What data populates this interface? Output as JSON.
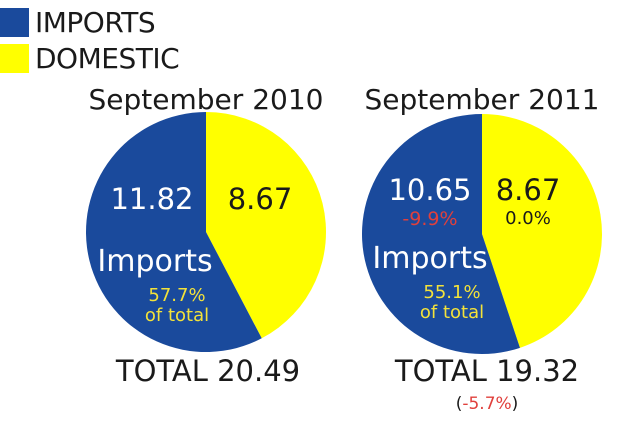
{
  "legend": {
    "items": [
      {
        "label": "IMPORTS",
        "color": "#1a4a9c"
      },
      {
        "label": "DOMESTIC",
        "color": "#ffff00"
      }
    ]
  },
  "chart_data": [
    {
      "type": "pie",
      "title": "September 2010",
      "slices": [
        {
          "name": "IMPORTS",
          "value": 11.82,
          "color": "#1a4a9c"
        },
        {
          "name": "DOMESTIC",
          "value": 8.67,
          "color": "#ffff00"
        }
      ],
      "labels": {
        "imports_value": "11.82",
        "domestic_value": "8.67",
        "imports_word": "Imports",
        "share": "57.7%",
        "share_suffix": "of total",
        "total": "TOTAL 20.49"
      }
    },
    {
      "type": "pie",
      "title": "September 2011",
      "slices": [
        {
          "name": "IMPORTS",
          "value": 10.65,
          "color": "#1a4a9c"
        },
        {
          "name": "DOMESTIC",
          "value": 8.67,
          "color": "#ffff00"
        }
      ],
      "labels": {
        "imports_value": "10.65",
        "imports_change": "-9.9%",
        "domestic_value": "8.67",
        "domestic_change": "0.0%",
        "imports_word": "Imports",
        "share": "55.1%",
        "share_suffix": "of total",
        "total": "TOTAL 19.32",
        "total_change_open": "(",
        "total_change": "-5.7%",
        "total_change_close": ")"
      }
    }
  ]
}
